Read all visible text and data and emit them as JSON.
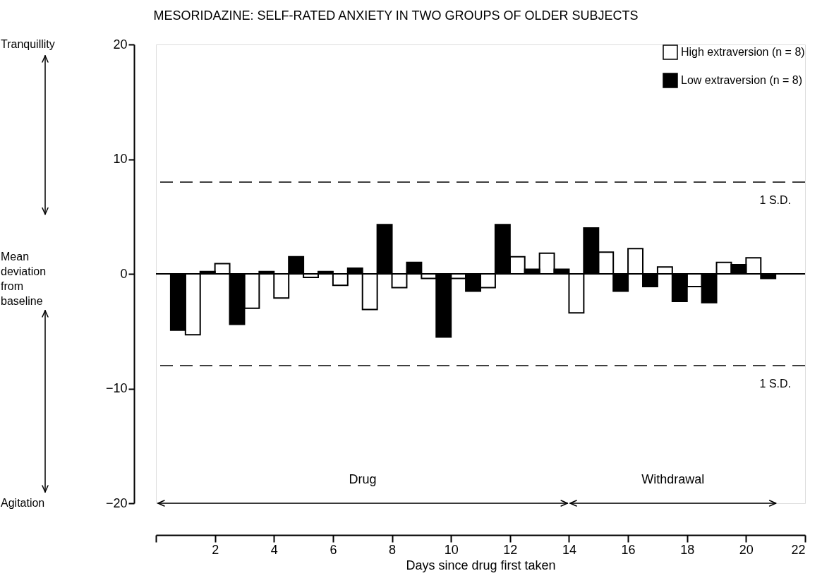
{
  "chart_data": {
    "type": "bar",
    "title": "MESORIDAZINE: SELF-RATED ANXIETY IN TWO GROUPS OF OLDER SUBJECTS",
    "xlabel": "Days since drug first taken",
    "x": [
      1,
      2,
      3,
      4,
      5,
      6,
      7,
      8,
      9,
      10,
      11,
      12,
      13,
      14,
      15,
      16,
      17,
      18,
      19,
      20,
      21
    ],
    "series": [
      {
        "name": "High extraversion (n = 8)",
        "color": "#ffffff",
        "values": [
          -5.3,
          0.9,
          -3.0,
          -2.1,
          -0.3,
          -1.0,
          -3.1,
          -1.2,
          -0.4,
          -0.4,
          -1.2,
          1.5,
          1.8,
          -3.4,
          1.9,
          2.2,
          0.6,
          -1.1,
          1.0,
          1.4,
          null
        ]
      },
      {
        "name": "Low extraversion (n = 8)",
        "color": "#000000",
        "values": [
          -4.9,
          0.2,
          -4.4,
          0.2,
          1.5,
          0.2,
          0.5,
          4.3,
          1.0,
          -5.5,
          -1.5,
          4.3,
          0.4,
          0.4,
          4.0,
          -1.5,
          -1.1,
          -2.4,
          -2.5,
          0.8,
          -0.4
        ]
      }
    ],
    "xlim": [
      0,
      22
    ],
    "xticks": [
      {
        "value": 0,
        "label": null
      },
      2,
      4,
      6,
      8,
      10,
      12,
      14,
      16,
      18,
      20,
      22
    ],
    "ylim": [
      -20,
      20
    ],
    "yticks": [
      -20,
      -10,
      0,
      10,
      20
    ],
    "ref_lines": [
      {
        "axis": "y",
        "value": 8,
        "label": "1 S.D.",
        "line_style": "dashed"
      },
      {
        "axis": "y",
        "value": -8,
        "label": "1 S.D.",
        "line_style": "dashed"
      },
      {
        "axis": "y",
        "value": 0,
        "line_style": "solid"
      }
    ],
    "annotations": [
      "Tranquillity",
      "Mean deviation from baseline",
      "Agitation",
      "Drug",
      "Withdrawal"
    ],
    "grid": false,
    "legend": "top right"
  }
}
